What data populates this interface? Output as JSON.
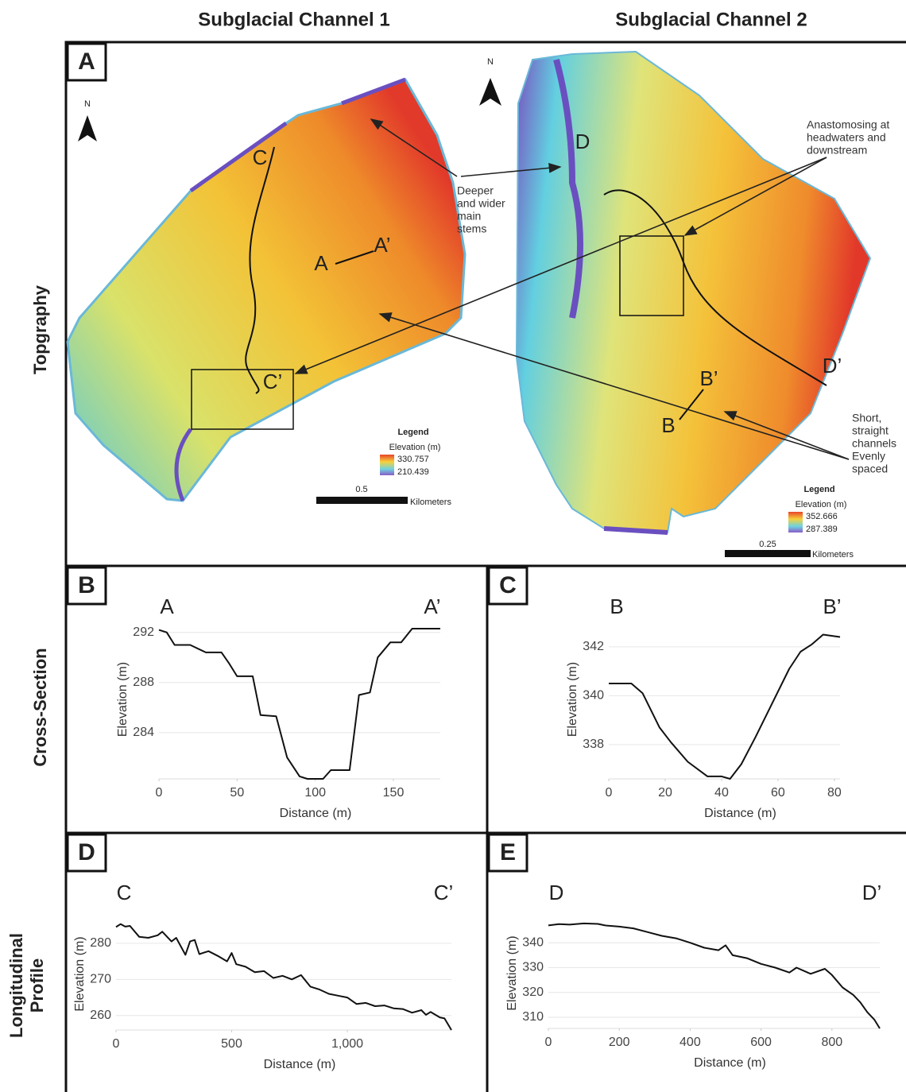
{
  "headers": {
    "col1": "Subglacial Channel 1",
    "col2": "Subglacial Channel 2"
  },
  "rows": {
    "topography": "Topgraphy",
    "cross_section": "Cross-Section",
    "profile": [
      "Longitudinal",
      "Profile"
    ]
  },
  "panels": [
    "A",
    "B",
    "C",
    "D",
    "E"
  ],
  "map": {
    "north": [
      "N",
      "N"
    ],
    "labels": [
      "C",
      "C’",
      "A",
      "A’",
      "D",
      "D’",
      "B",
      "B’"
    ],
    "notes": [
      [
        "Deeper",
        "and wider",
        "main",
        "stems"
      ],
      [
        "Anastomosing at",
        "headwaters and",
        "downstream"
      ],
      [
        "Short,",
        "straight",
        "channels",
        "Evenly",
        "spaced"
      ]
    ],
    "legends": [
      {
        "title": "Legend",
        "subtitle": "Elevation (m)",
        "high": "330.757",
        "low": "210.439",
        "scale": "0.5",
        "unit": "Kilometers"
      },
      {
        "title": "Legend",
        "subtitle": "Elevation (m)",
        "high": "352.666",
        "low": "287.389",
        "scale": "0.25",
        "unit": "Kilometers"
      }
    ]
  },
  "chart_data": [
    {
      "type": "line",
      "ends": [
        "A",
        "A’"
      ],
      "xlabel": "Distance (m)",
      "ylabel": "Elevation (m)",
      "color": "#111111",
      "grid": true,
      "x": [
        0,
        5,
        10,
        20,
        30,
        40,
        45,
        50,
        60,
        65,
        75,
        82,
        90,
        95,
        105,
        110,
        122,
        128,
        135,
        140,
        148,
        155,
        162,
        180
      ],
      "values": [
        292.2,
        292,
        291,
        291,
        290.4,
        290.4,
        289.5,
        288.5,
        288.5,
        285.4,
        285.3,
        282,
        280.5,
        280.3,
        280.3,
        281,
        281,
        287,
        287.2,
        290,
        291.2,
        291.2,
        292.3,
        292.3
      ],
      "xlim": [
        0,
        180
      ],
      "ylim": [
        280.3,
        293
      ],
      "xticks": [
        0,
        50,
        100,
        150
      ],
      "yticks": [
        284,
        288,
        292
      ]
    },
    {
      "type": "line",
      "ends": [
        "B",
        "B’"
      ],
      "xlabel": "Distance (m)",
      "ylabel": "Elevation (m)",
      "color": "#111111",
      "grid": true,
      "x": [
        0,
        8,
        12,
        18,
        22,
        28,
        35,
        40,
        43,
        47,
        52,
        58,
        64,
        68,
        72,
        76,
        82
      ],
      "values": [
        340.5,
        340.5,
        340.1,
        338.7,
        338.1,
        337.3,
        336.7,
        336.7,
        336.6,
        337.2,
        338.3,
        339.7,
        341.1,
        341.8,
        342.1,
        342.5,
        342.4
      ],
      "xlim": [
        0,
        82
      ],
      "ylim": [
        336.6,
        343.1
      ],
      "xticks": [
        0,
        20,
        40,
        60,
        80
      ],
      "yticks": [
        338,
        340,
        342
      ]
    },
    {
      "type": "line",
      "ends": [
        "C",
        "C’"
      ],
      "xlabel": "Distance (m)",
      "ylabel": "Elevation (m)",
      "color": "#111111",
      "grid": true,
      "x": [
        0,
        20,
        40,
        60,
        100,
        140,
        180,
        200,
        240,
        260,
        300,
        320,
        340,
        360,
        400,
        440,
        480,
        500,
        520,
        560,
        600,
        640,
        680,
        720,
        760,
        800,
        840,
        880,
        920,
        960,
        1000,
        1040,
        1080,
        1120,
        1160,
        1200,
        1240,
        1280,
        1320,
        1340,
        1360,
        1400,
        1420,
        1450
      ],
      "values": [
        284.5,
        285.3,
        284.6,
        284.8,
        281.8,
        281.5,
        282.2,
        283.2,
        280.5,
        281.5,
        276.8,
        280.5,
        280.9,
        277.0,
        277.8,
        276.5,
        275.0,
        277.3,
        274.2,
        273.5,
        272.0,
        272.3,
        270.4,
        271.0,
        270.0,
        271.2,
        268.0,
        267.2,
        266.0,
        265.5,
        265.0,
        263.2,
        263.5,
        262.6,
        262.8,
        262.0,
        261.8,
        260.8,
        261.5,
        260.2,
        261.0,
        259.5,
        259.2,
        256.0
      ],
      "xlim": [
        0,
        1450
      ],
      "ylim": [
        256,
        287
      ],
      "xticks": [
        0,
        500,
        {
          "value": 1000,
          "label": "1,000"
        }
      ],
      "yticks": [
        260,
        270,
        280
      ]
    },
    {
      "type": "line",
      "ends": [
        "D",
        "D’"
      ],
      "xlabel": "Distance (m)",
      "ylabel": "Elevation (m)",
      "color": "#111111",
      "grid": true,
      "x": [
        0,
        30,
        60,
        100,
        140,
        160,
        200,
        240,
        280,
        320,
        360,
        400,
        440,
        480,
        500,
        520,
        560,
        600,
        640,
        680,
        700,
        740,
        780,
        800,
        830,
        860,
        880,
        900,
        920,
        935
      ],
      "values": [
        347,
        347.5,
        347.3,
        347.8,
        347.6,
        347.0,
        346.5,
        345.8,
        344.3,
        342.8,
        341.8,
        340.0,
        338.0,
        337.0,
        339.0,
        335.0,
        333.8,
        331.5,
        330.0,
        328.0,
        330.0,
        327.5,
        329.5,
        327.0,
        322.0,
        319.0,
        316.0,
        312.0,
        309.0,
        305.5
      ],
      "xlim": [
        0,
        935
      ],
      "ylim": [
        305.5,
        350
      ],
      "xticks": [
        0,
        200,
        400,
        600,
        800
      ],
      "yticks": [
        310,
        320,
        330,
        340
      ]
    }
  ]
}
